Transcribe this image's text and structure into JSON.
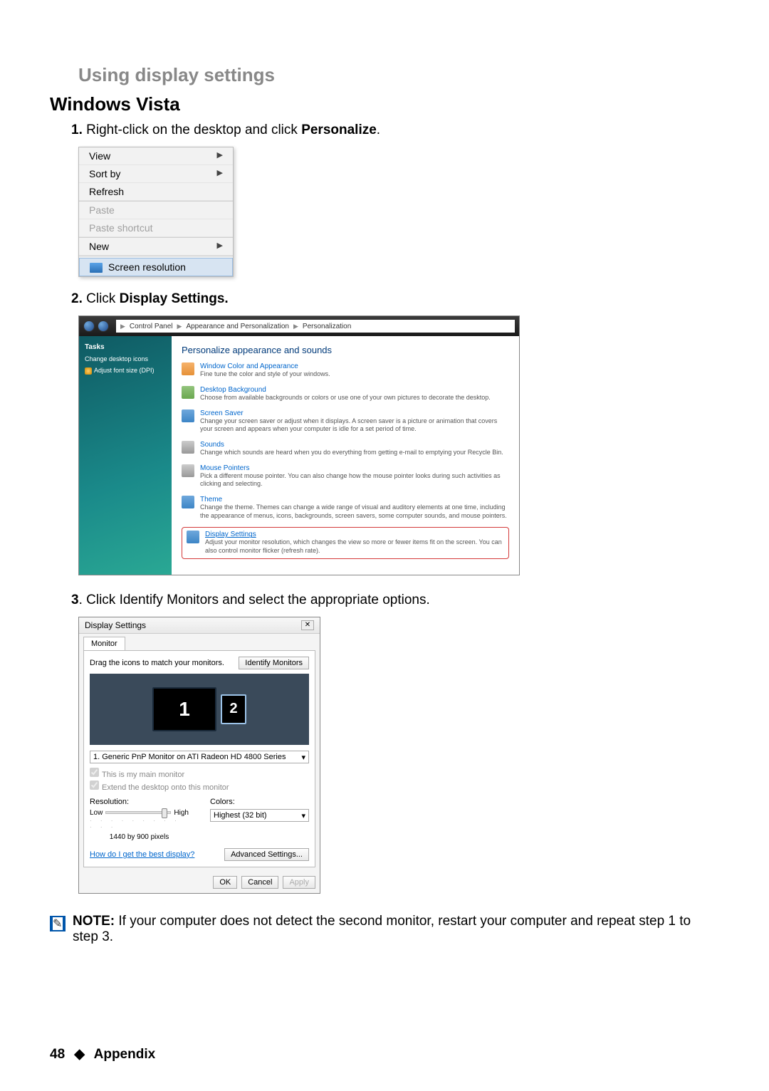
{
  "page": {
    "section_title": "Using display settings",
    "os_title": "Windows Vista",
    "step1_num": "1.",
    "step1_text": "Right-click on the desktop and click ",
    "step1_bold": "Personalize",
    "step1_end": ".",
    "step2_num": "2.",
    "step2_text": "Click ",
    "step2_bold": "Display Settings.",
    "step3_num": "3",
    "step3_text": ". Click Identify Monitors and select the appropriate options.",
    "note_label": "NOTE:",
    "note_text": " If your computer does not detect the second monitor, restart your computer and repeat step 1 to step 3.",
    "page_number": "48",
    "diamond": "◆",
    "footer_label": "Appendix"
  },
  "context_menu": {
    "view": "View",
    "sortby": "Sort by",
    "refresh": "Refresh",
    "paste": "Paste",
    "paste_shortcut": "Paste shortcut",
    "new": "New",
    "screen_resolution": "Screen resolution"
  },
  "pers": {
    "bc1": "Control Panel",
    "bc2": "Appearance and Personalization",
    "bc3": "Personalization",
    "tasks": "Tasks",
    "task1": "Change desktop icons",
    "task2": "Adjust font size (DPI)",
    "main_hd": "Personalize appearance and sounds",
    "i1_title": "Window Color and Appearance",
    "i1_desc": "Fine tune the color and style of your windows.",
    "i2_title": "Desktop Background",
    "i2_desc": "Choose from available backgrounds or colors or use one of your own pictures to decorate the desktop.",
    "i3_title": "Screen Saver",
    "i3_desc": "Change your screen saver or adjust when it displays. A screen saver is a picture or animation that covers your screen and appears when your computer is idle for a set period of time.",
    "i4_title": "Sounds",
    "i4_desc": "Change which sounds are heard when you do everything from getting e-mail to emptying your Recycle Bin.",
    "i5_title": "Mouse Pointers",
    "i5_desc": "Pick a different mouse pointer. You can also change how the mouse pointer looks during such activities as clicking and selecting.",
    "i6_title": "Theme",
    "i6_desc": "Change the theme. Themes can change a wide range of visual and auditory elements at one time, including the appearance of menus, icons, backgrounds, screen savers, some computer sounds, and mouse pointers.",
    "i7_title": "Display Settings",
    "i7_desc": "Adjust your monitor resolution, which changes the view so more or fewer items fit on the screen. You can also control monitor flicker (refresh rate)."
  },
  "ds": {
    "title": "Display Settings",
    "tab": "Monitor",
    "drag_text": "Drag the icons to match your monitors.",
    "identify_btn": "Identify Monitors",
    "mon1": "1",
    "mon2": "2",
    "select_val": "1. Generic PnP Monitor on ATI Radeon HD 4800 Series",
    "chk1": "This is my main monitor",
    "chk2": "Extend the desktop onto this monitor",
    "res_label": "Resolution:",
    "color_label": "Colors:",
    "low": "Low",
    "high": "High",
    "res_value": "1440 by 900 pixels",
    "color_val": "Highest (32 bit)",
    "help_link": "How do I get the best display?",
    "adv_btn": "Advanced Settings...",
    "ok": "OK",
    "cancel": "Cancel",
    "apply": "Apply"
  }
}
